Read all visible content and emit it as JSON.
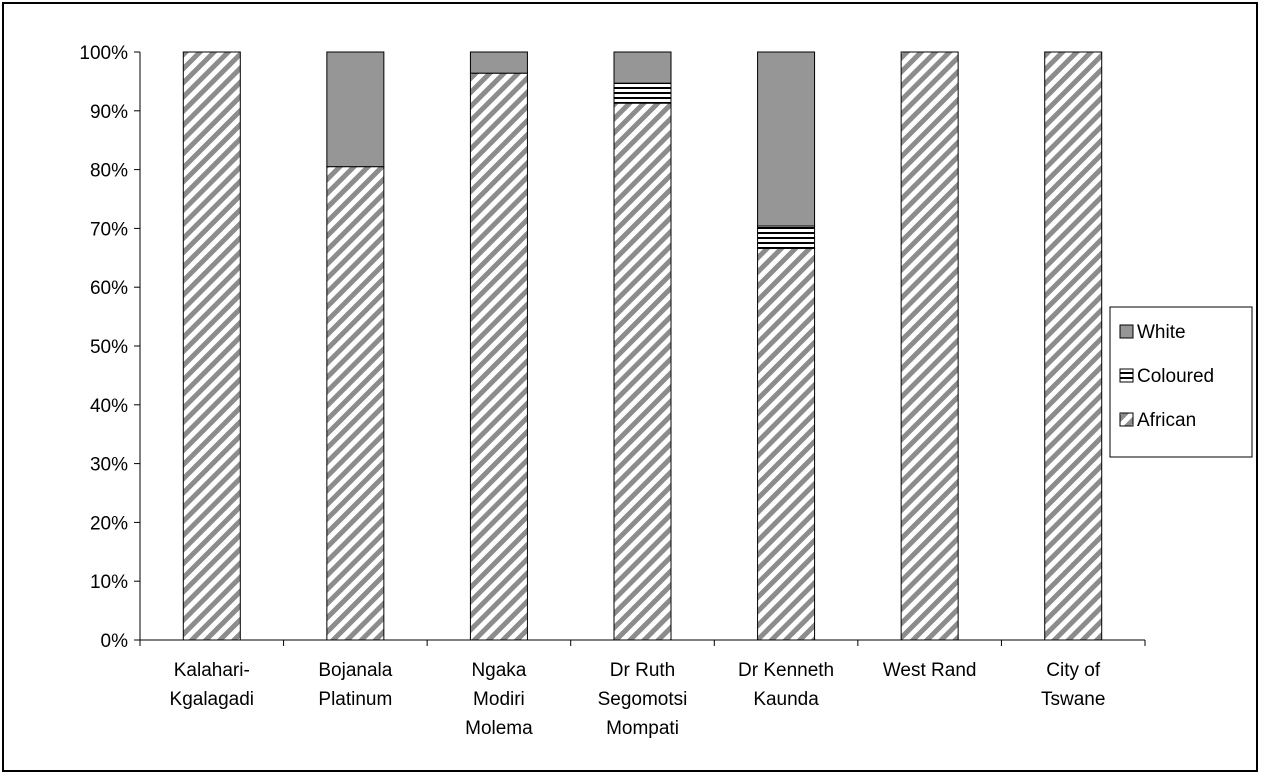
{
  "chart_data": {
    "type": "bar",
    "stacked": true,
    "percent": true,
    "title": "",
    "xlabel": "",
    "ylabel": "",
    "ylim": [
      0,
      100
    ],
    "yticks": [
      "0%",
      "10%",
      "20%",
      "30%",
      "40%",
      "50%",
      "60%",
      "70%",
      "80%",
      "90%",
      "100%"
    ],
    "grid": false,
    "legend_position": "right",
    "categories": [
      [
        "Kalahari-",
        "Kgalagadi"
      ],
      [
        "Bojanala",
        "Platinum"
      ],
      [
        "Ngaka",
        "Modiri",
        "Molema"
      ],
      [
        "Dr Ruth",
        "Segomotsi",
        "Mompati"
      ],
      [
        "Dr Kenneth",
        "Kaunda"
      ],
      [
        "West Rand"
      ],
      [
        "City of",
        "Tswane"
      ]
    ],
    "series": [
      {
        "name": "African",
        "values": [
          100,
          80.5,
          96.4,
          91.3,
          66.6,
          100,
          100
        ],
        "color": "#ffffff",
        "pattern": "diagonal-stripes"
      },
      {
        "name": "Coloured",
        "values": [
          0,
          0,
          0,
          3.4,
          3.8,
          0,
          0
        ],
        "color": "#ffffff",
        "pattern": "horizontal-stripes"
      },
      {
        "name": "White",
        "values": [
          0,
          19.5,
          3.6,
          5.3,
          29.6,
          0,
          0
        ],
        "color": "#969696",
        "pattern": "solid"
      }
    ]
  }
}
